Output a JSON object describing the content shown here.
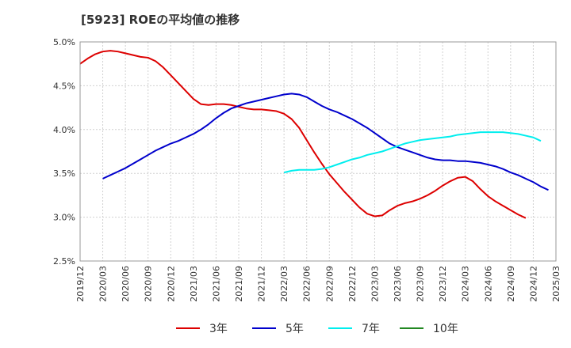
{
  "chart_data": {
    "type": "line",
    "title": "[5923]  ROEの平均値の推移",
    "xlabel": "",
    "ylabel": "",
    "ylim": [
      2.5,
      5.0
    ],
    "y_ticks": [
      "2.5%",
      "3.0%",
      "3.5%",
      "4.0%",
      "4.5%",
      "5.0%"
    ],
    "x_ticks": [
      "2019/12",
      "2020/03",
      "2020/06",
      "2020/09",
      "2020/12",
      "2021/03",
      "2021/06",
      "2021/09",
      "2021/12",
      "2022/03",
      "2022/06",
      "2022/09",
      "2022/12",
      "2023/03",
      "2023/06",
      "2023/09",
      "2023/12",
      "2024/03",
      "2024/06",
      "2024/09",
      "2024/12",
      "2025/03"
    ],
    "grid": true,
    "legend_position": "bottom",
    "series": [
      {
        "name": "3年",
        "color": "#dd0000",
        "start_index": 0,
        "values": [
          4.75,
          4.81,
          4.86,
          4.89,
          4.9,
          4.89,
          4.87,
          4.85,
          4.83,
          4.82,
          4.78,
          4.71,
          4.62,
          4.53,
          4.44,
          4.35,
          4.29,
          4.28,
          4.29,
          4.29,
          4.28,
          4.26,
          4.24,
          4.23,
          4.23,
          4.22,
          4.21,
          4.18,
          4.12,
          4.02,
          3.88,
          3.74,
          3.61,
          3.49,
          3.39,
          3.29,
          3.2,
          3.11,
          3.04,
          3.01,
          3.02,
          3.08,
          3.13,
          3.16,
          3.18,
          3.21,
          3.25,
          3.3,
          3.36,
          3.41,
          3.45,
          3.46,
          3.41,
          3.32,
          3.24,
          3.18,
          3.13,
          3.08,
          3.03,
          2.99
        ]
      },
      {
        "name": "5年",
        "color": "#0000cc",
        "start_index": 3,
        "values": [
          3.44,
          3.48,
          3.52,
          3.56,
          3.61,
          3.66,
          3.71,
          3.76,
          3.8,
          3.84,
          3.87,
          3.91,
          3.95,
          4.0,
          4.06,
          4.13,
          4.19,
          4.24,
          4.27,
          4.3,
          4.32,
          4.34,
          4.36,
          4.38,
          4.4,
          4.41,
          4.4,
          4.37,
          4.32,
          4.27,
          4.23,
          4.2,
          4.16,
          4.12,
          4.07,
          4.02,
          3.96,
          3.9,
          3.84,
          3.8,
          3.77,
          3.74,
          3.71,
          3.68,
          3.66,
          3.65,
          3.65,
          3.64,
          3.64,
          3.63,
          3.62,
          3.6,
          3.58,
          3.55,
          3.51,
          3.48,
          3.44,
          3.4,
          3.35,
          3.31
        ]
      },
      {
        "name": "7年",
        "color": "#00eeee",
        "start_index": 27,
        "values": [
          3.51,
          3.53,
          3.54,
          3.54,
          3.54,
          3.55,
          3.57,
          3.6,
          3.63,
          3.66,
          3.68,
          3.71,
          3.73,
          3.75,
          3.78,
          3.81,
          3.84,
          3.86,
          3.88,
          3.89,
          3.9,
          3.91,
          3.92,
          3.94,
          3.95,
          3.96,
          3.97,
          3.97,
          3.97,
          3.97,
          3.96,
          3.95,
          3.93,
          3.91,
          3.87
        ]
      },
      {
        "name": "10年",
        "color": "#228822",
        "start_index": 0,
        "values": []
      }
    ]
  }
}
